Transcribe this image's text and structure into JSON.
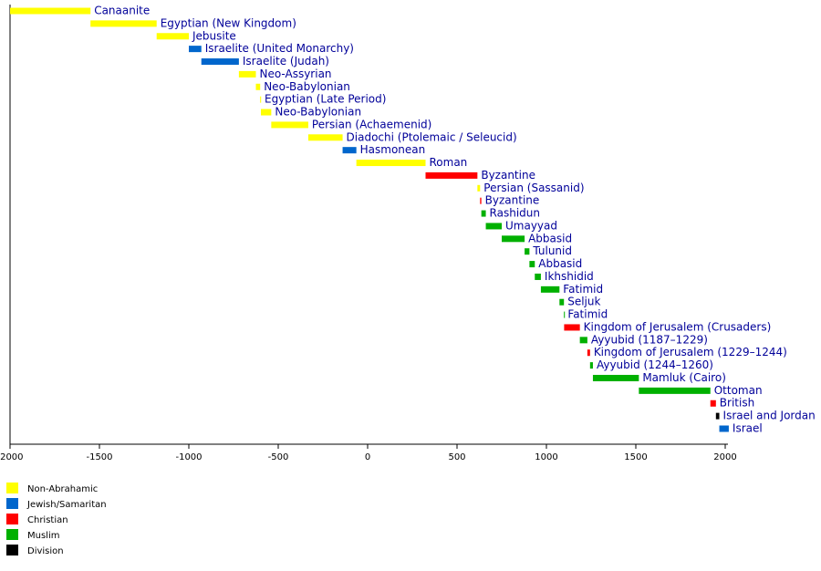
{
  "chart_data": {
    "type": "timeline",
    "xlim": [
      -2000,
      2000
    ],
    "xticks": [
      -2000,
      -1500,
      -1000,
      -500,
      0,
      500,
      1000,
      1500,
      2000
    ],
    "legend": [
      {
        "name": "Non-Abrahamic",
        "color": "#ffff00"
      },
      {
        "name": "Jewish/Samaritan",
        "color": "#0066cc"
      },
      {
        "name": "Christian",
        "color": "#ff0000"
      },
      {
        "name": "Muslim",
        "color": "#00b000"
      },
      {
        "name": "Division",
        "color": "#000000"
      }
    ],
    "bars": [
      {
        "label": "Canaanite",
        "start": -2000,
        "end": -1550,
        "color": "#ffff00"
      },
      {
        "label": "Egyptian (New Kingdom)",
        "start": -1550,
        "end": -1180,
        "color": "#ffff00"
      },
      {
        "label": "Jebusite",
        "start": -1180,
        "end": -1000,
        "color": "#ffff00"
      },
      {
        "label": "Israelite (United Monarchy)",
        "start": -1000,
        "end": -930,
        "color": "#0066cc"
      },
      {
        "label": "Israelite (Judah)",
        "start": -930,
        "end": -720,
        "color": "#0066cc"
      },
      {
        "label": "Neo-Assyrian",
        "start": -720,
        "end": -625,
        "color": "#ffff00"
      },
      {
        "label": "Neo-Babylonian",
        "start": -625,
        "end": -601,
        "color": "#ffff00"
      },
      {
        "label": "Egyptian (Late Period)",
        "start": -601,
        "end": -597,
        "color": "#ffff00"
      },
      {
        "label": "Neo-Babylonian",
        "start": -597,
        "end": -539,
        "color": "#ffff00"
      },
      {
        "label": "Persian (Achaemenid)",
        "start": -539,
        "end": -332,
        "color": "#ffff00"
      },
      {
        "label": "Diadochi (Ptolemaic / Seleucid)",
        "start": -332,
        "end": -140,
        "color": "#ffff00"
      },
      {
        "label": "Hasmonean",
        "start": -140,
        "end": -63,
        "color": "#0066cc"
      },
      {
        "label": "Roman",
        "start": -63,
        "end": 324,
        "color": "#ffff00"
      },
      {
        "label": "Byzantine",
        "start": 324,
        "end": 614,
        "color": "#ff0000"
      },
      {
        "label": "Persian (Sassanid)",
        "start": 614,
        "end": 629,
        "color": "#ffff00"
      },
      {
        "label": "Byzantine",
        "start": 629,
        "end": 636,
        "color": "#ff0000"
      },
      {
        "label": "Rashidun",
        "start": 636,
        "end": 661,
        "color": "#00b000"
      },
      {
        "label": "Umayyad",
        "start": 661,
        "end": 750,
        "color": "#00b000"
      },
      {
        "label": "Abbasid",
        "start": 750,
        "end": 878,
        "color": "#00b000"
      },
      {
        "label": "Tulunid",
        "start": 878,
        "end": 905,
        "color": "#00b000"
      },
      {
        "label": "Abbasid",
        "start": 905,
        "end": 935,
        "color": "#00b000"
      },
      {
        "label": "Ikhshidid",
        "start": 935,
        "end": 969,
        "color": "#00b000"
      },
      {
        "label": "Fatimid",
        "start": 969,
        "end": 1073,
        "color": "#00b000"
      },
      {
        "label": "Seljuk",
        "start": 1073,
        "end": 1098,
        "color": "#00b000"
      },
      {
        "label": "Fatimid",
        "start": 1098,
        "end": 1099,
        "color": "#00b000"
      },
      {
        "label": "Kingdom of Jerusalem (Crusaders)",
        "start": 1099,
        "end": 1187,
        "color": "#ff0000"
      },
      {
        "label": "Ayyubid (1187–1229)",
        "start": 1187,
        "end": 1229,
        "color": "#00b000"
      },
      {
        "label": "Kingdom of Jerusalem (1229–1244)",
        "start": 1229,
        "end": 1244,
        "color": "#ff0000"
      },
      {
        "label": "Ayyubid (1244–1260)",
        "start": 1244,
        "end": 1260,
        "color": "#00b000"
      },
      {
        "label": "Mamluk (Cairo)",
        "start": 1260,
        "end": 1517,
        "color": "#00b000"
      },
      {
        "label": "Ottoman",
        "start": 1517,
        "end": 1917,
        "color": "#00b000"
      },
      {
        "label": "British",
        "start": 1917,
        "end": 1948,
        "color": "#ff0000"
      },
      {
        "label": "Israel and Jordan",
        "start": 1948,
        "end": 1967,
        "color": "#000000"
      },
      {
        "label": "Israel",
        "start": 1967,
        "end": 2020,
        "color": "#0066cc"
      }
    ]
  }
}
